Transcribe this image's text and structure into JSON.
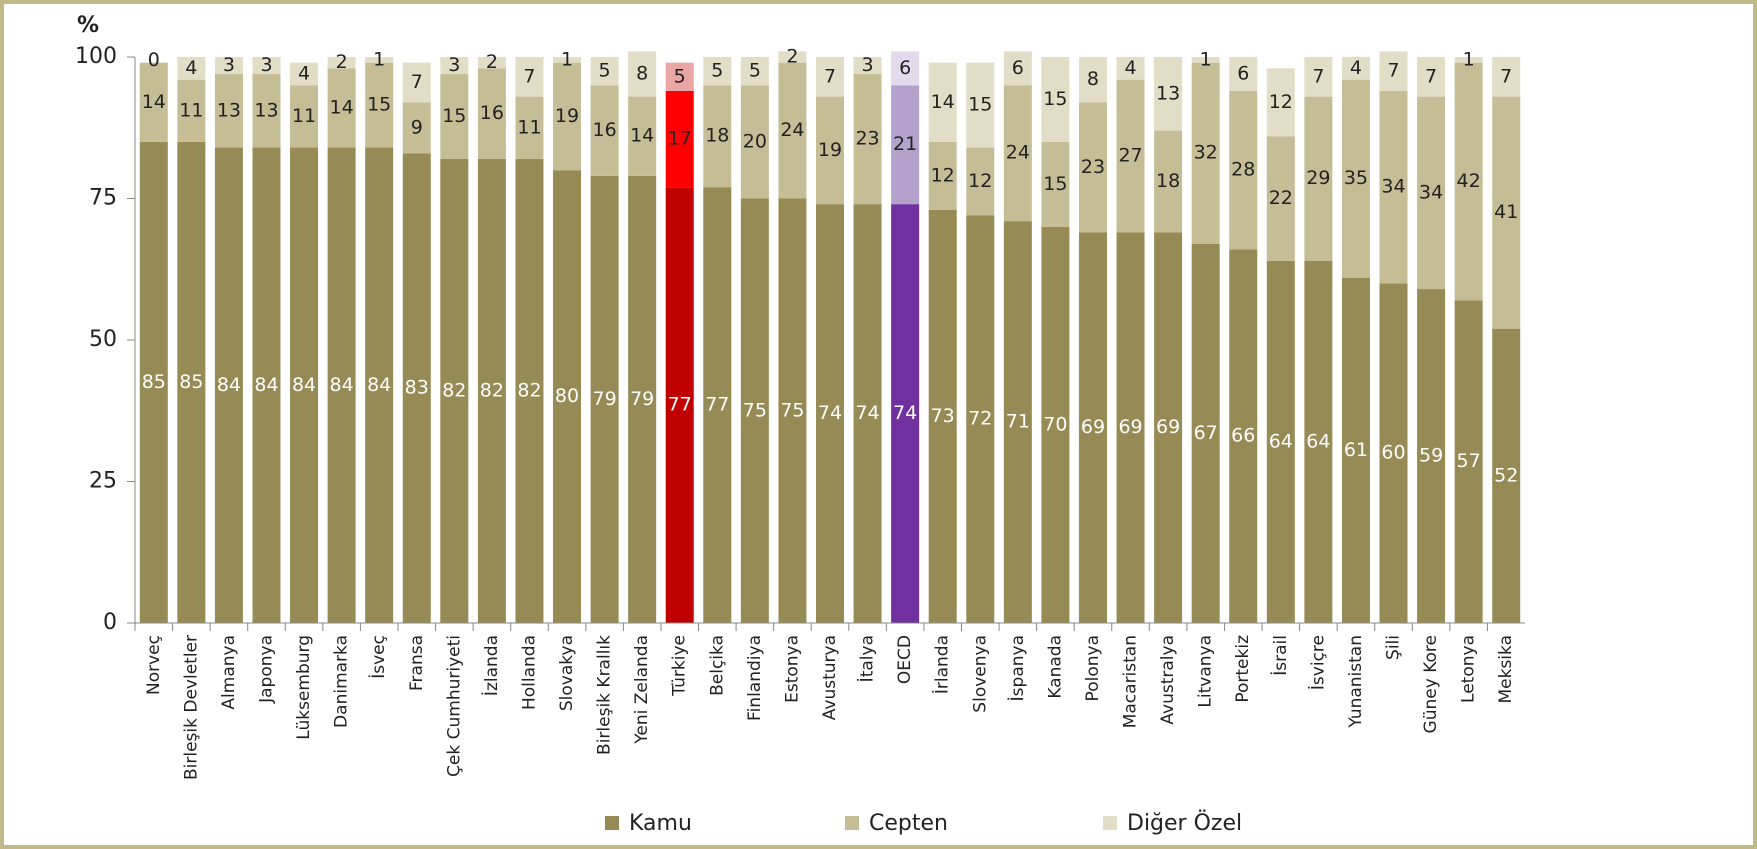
{
  "chart_data": {
    "type": "stacked_bar",
    "y_label": "%",
    "categories": [
      "Norveç",
      "Birleşik Devletler",
      "Almanya",
      "Japonya",
      "Lüksemburg",
      "Danimarka",
      "İsveç",
      "Fransa",
      "Çek Cumhuriyeti",
      "İzlanda",
      "Hollanda",
      "Slovakya",
      "Birleşik Krallık",
      "Yeni Zelanda",
      "Türkiye",
      "Belçika",
      "Finlandiya",
      "Estonya",
      "Avusturya",
      "İtalya",
      "OECD",
      "İrlanda",
      "Slovenya",
      "İspanya",
      "Kanada",
      "Polonya",
      "Macaristan",
      "Avustralya",
      "Litvanya",
      "Portekiz",
      "İsrail",
      "İsviçre",
      "Yunanistan",
      "Şili",
      "Güney Kore",
      "Letonya",
      "Meksika"
    ],
    "series": [
      {
        "name": "Kamu",
        "color": "#968a55",
        "label_color": "#ffffff",
        "point_colors": {
          "14": "#c00000",
          "20": "#7030a0"
        },
        "values": [
          85,
          85,
          84,
          84,
          84,
          84,
          84,
          83,
          82,
          82,
          82,
          80,
          79,
          79,
          77,
          77,
          75,
          75,
          74,
          74,
          74,
          73,
          72,
          71,
          70,
          69,
          69,
          69,
          67,
          66,
          64,
          64,
          61,
          60,
          59,
          57,
          52
        ]
      },
      {
        "name": "Cepten",
        "color": "#c5bd96",
        "label_color": "#222222",
        "point_colors": {
          "14": "#ff0000",
          "20": "#b3a2cc"
        },
        "values": [
          14,
          11,
          13,
          13,
          11,
          14,
          15,
          9,
          15,
          16,
          11,
          19,
          16,
          14,
          17,
          18,
          20,
          24,
          19,
          23,
          21,
          12,
          12,
          24,
          15,
          23,
          27,
          18,
          32,
          28,
          22,
          29,
          35,
          34,
          34,
          42,
          41
        ]
      },
      {
        "name": "Diğer Özel",
        "color": "#e2ddc6",
        "label_color": "#222222",
        "point_colors": {
          "14": "#eaa5a5",
          "20": "#e3dbec"
        },
        "values": [
          0,
          4,
          3,
          3,
          4,
          2,
          1,
          7,
          3,
          2,
          7,
          1,
          5,
          8,
          5,
          5,
          5,
          2,
          7,
          3,
          6,
          14,
          15,
          6,
          15,
          8,
          4,
          13,
          1,
          6,
          12,
          7,
          4,
          7,
          7,
          1,
          7
        ]
      }
    ],
    "ylim": [
      0,
      100
    ],
    "yticks": [
      0,
      25,
      50,
      75,
      100
    ],
    "legend": "bottom"
  }
}
